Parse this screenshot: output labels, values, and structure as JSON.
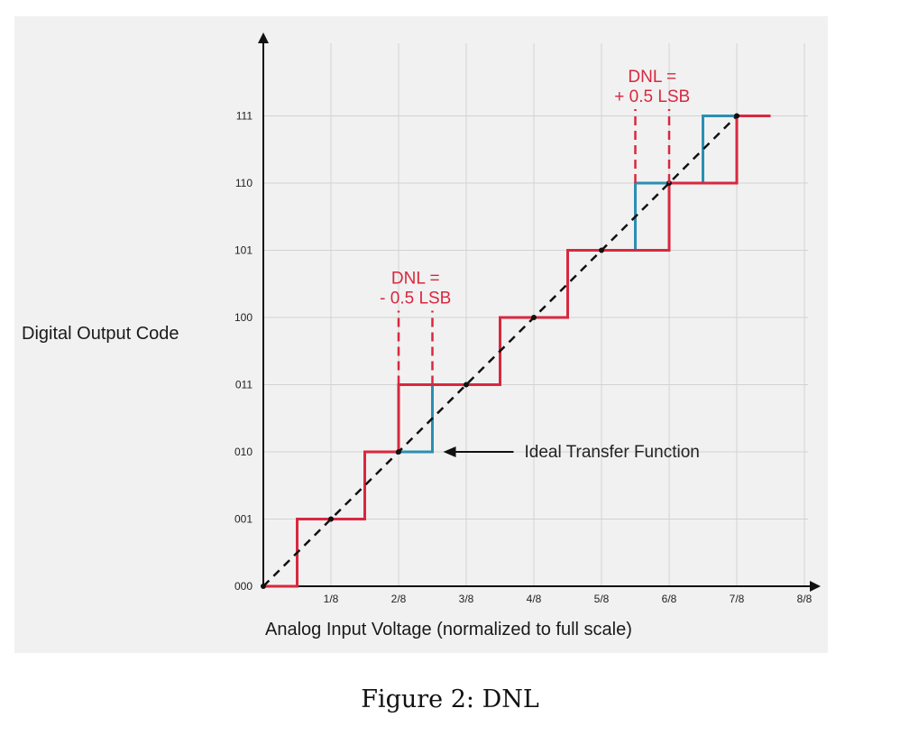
{
  "caption": "Figure 2:  DNL",
  "colors": {
    "ideal_line": "#2a8fb3",
    "actual_line": "#d8283f",
    "diagonal": "#111111",
    "grid": "#ffffff",
    "panel": "#f1f1f1",
    "annotation": "#d8283f"
  },
  "chart_data": {
    "type": "line",
    "title": "",
    "xlabel": "Analog Input Voltage (normalized to full scale)",
    "ylabel": "Digital Output Code",
    "x_tick_labels": [
      "1/8",
      "2/8",
      "3/8",
      "4/8",
      "5/8",
      "6/8",
      "7/8",
      "8/8"
    ],
    "y_tick_labels": [
      "000",
      "001",
      "010",
      "011",
      "100",
      "101",
      "110",
      "111"
    ],
    "xlim": [
      0,
      1.0
    ],
    "ylim": [
      0,
      7
    ],
    "grid": true,
    "series": [
      {
        "name": "Ideal Transfer Function",
        "style": "step",
        "x": [
          0,
          0.0625,
          0.0625,
          0.1875,
          0.1875,
          0.3125,
          0.3125,
          0.4375,
          0.4375,
          0.5625,
          0.5625,
          0.6875,
          0.6875,
          0.8125,
          0.8125,
          0.9375
        ],
        "y": [
          0,
          0,
          1,
          1,
          2,
          2,
          3,
          3,
          4,
          4,
          5,
          5,
          6,
          6,
          7,
          7
        ]
      },
      {
        "name": "",
        "style": "step",
        "x": [
          0,
          0.0625,
          0.0625,
          0.1875,
          0.1875,
          0.25,
          0.25,
          0.4375,
          0.4375,
          0.5625,
          0.5625,
          0.75,
          0.75,
          0.875,
          0.875,
          0.9375
        ],
        "y": [
          0,
          0,
          1,
          1,
          2,
          2,
          3,
          3,
          4,
          4,
          5,
          5,
          6,
          6,
          7,
          7
        ]
      },
      {
        "name": "",
        "style": "dashed",
        "x": [
          0,
          0.875
        ],
        "y": [
          0,
          7
        ]
      }
    ],
    "annotations": [
      {
        "text_line1": "DNL =",
        "text_line2": "- 0.5 LSB",
        "x_markers": [
          0.25,
          0.3125
        ],
        "y_from": 3,
        "y_to": 4.1
      },
      {
        "text_line1": "DNL =",
        "text_line2": "+ 0.5 LSB",
        "x_markers": [
          0.6875,
          0.75
        ],
        "y_from": 6,
        "y_to": 7.1
      },
      {
        "text": "Ideal Transfer Function",
        "arrow_to_x": 0.3125,
        "arrow_to_y": 2
      }
    ]
  }
}
